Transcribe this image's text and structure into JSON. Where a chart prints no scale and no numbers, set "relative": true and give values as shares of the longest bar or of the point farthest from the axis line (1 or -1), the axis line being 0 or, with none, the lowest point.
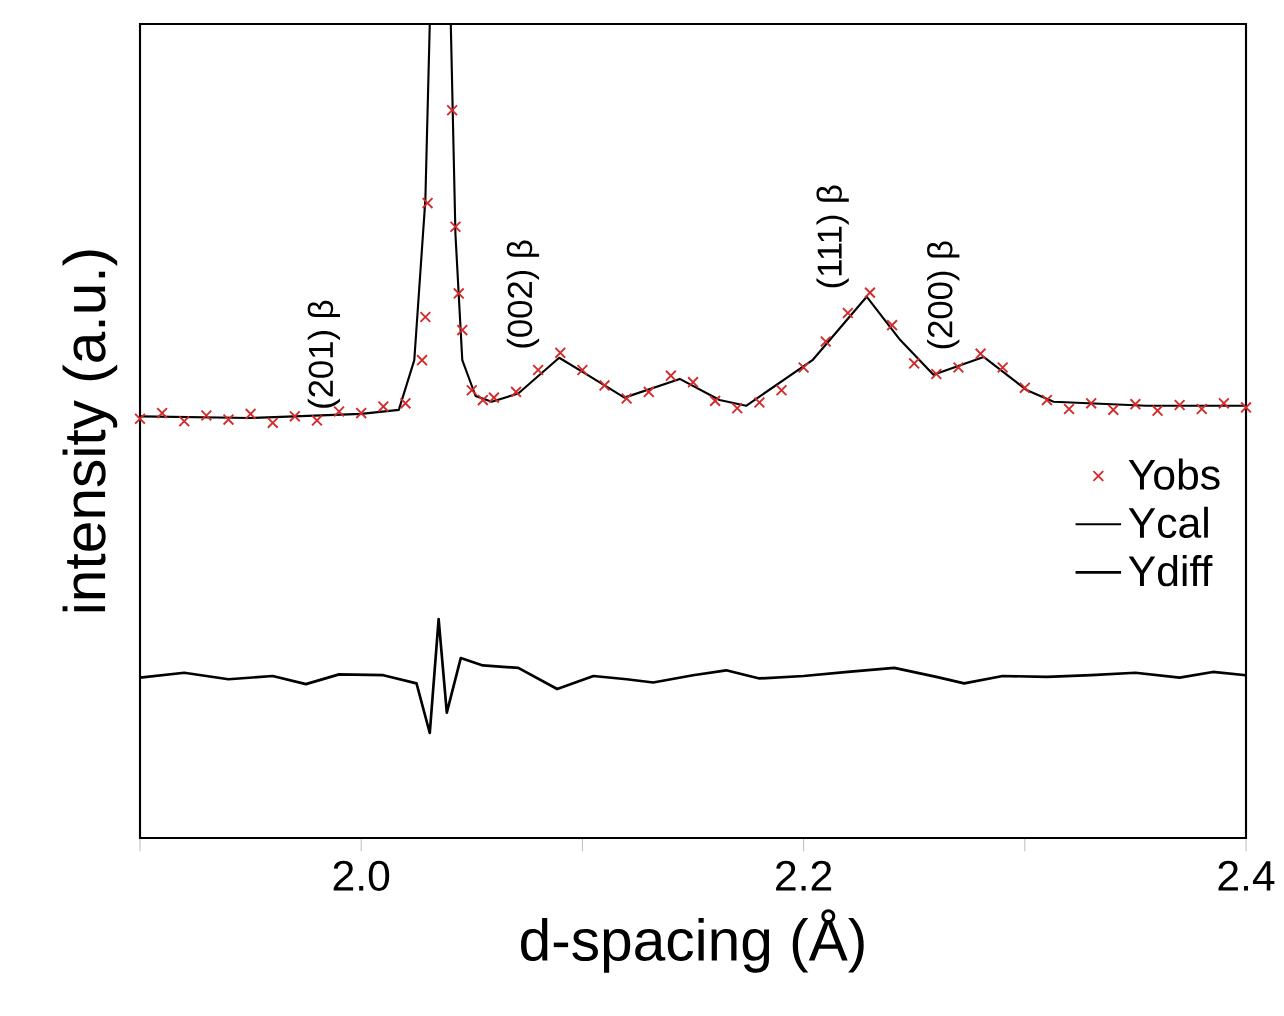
{
  "chart_data": {
    "type": "line",
    "xlabel": "d-spacing (Å)",
    "ylabel": "intensity (a.u.)",
    "relative": true,
    "legend": "right",
    "xlim": [
      1.9,
      2.4
    ],
    "xticks": [
      {
        "value": 1.9,
        "label": null
      },
      {
        "value": 2.0,
        "label": "2.0"
      },
      {
        "value": 2.1,
        "label": null
      },
      {
        "value": 2.2,
        "label": "2.2"
      },
      {
        "value": 2.3,
        "label": null
      },
      {
        "value": 2.4,
        "label": "2.4"
      }
    ],
    "series": [
      {
        "name": "Yobs",
        "type": "scatter",
        "marker": "cross",
        "color": "#d42a2a",
        "x": [
          1.9,
          1.91,
          1.92,
          1.93,
          1.94,
          1.95,
          1.96,
          1.97,
          1.98,
          1.99,
          2.0,
          2.01,
          2.02,
          2.0275,
          2.029,
          2.03,
          2.0411,
          2.0426,
          2.0441,
          2.0457,
          2.05,
          2.055,
          2.06,
          2.07,
          2.08,
          2.09,
          2.1,
          2.11,
          2.12,
          2.13,
          2.14,
          2.15,
          2.16,
          2.17,
          2.18,
          2.19,
          2.2,
          2.21,
          2.22,
          2.23,
          2.24,
          2.25,
          2.26,
          2.27,
          2.28,
          2.29,
          2.3,
          2.31,
          2.32,
          2.33,
          2.34,
          2.35,
          2.36,
          2.37,
          2.38,
          2.39,
          2.4
        ],
        "values": [
          0.515,
          0.522,
          0.512,
          0.519,
          0.514,
          0.521,
          0.51,
          0.518,
          0.513,
          0.524,
          0.522,
          0.53,
          0.534,
          0.587,
          0.64,
          0.78,
          0.894,
          0.751,
          0.669,
          0.624,
          0.55,
          0.538,
          0.541,
          0.548,
          0.575,
          0.596,
          0.575,
          0.556,
          0.54,
          0.548,
          0.568,
          0.56,
          0.537,
          0.528,
          0.535,
          0.55,
          0.578,
          0.61,
          0.645,
          0.67,
          0.63,
          0.583,
          0.57,
          0.578,
          0.595,
          0.578,
          0.553,
          0.538,
          0.527,
          0.534,
          0.526,
          0.533,
          0.525,
          0.532,
          0.527,
          0.534,
          0.529
        ]
      },
      {
        "name": "Ycal",
        "color": "#000000",
        "x": [
          1.9,
          1.95,
          2.0,
          2.017,
          2.024,
          2.029,
          2.031,
          2.0405,
          2.0426,
          2.0457,
          2.0517,
          2.059,
          2.071,
          2.0895,
          2.101,
          2.119,
          2.144,
          2.162,
          2.174,
          2.204,
          2.2285,
          2.2436,
          2.2587,
          2.2814,
          2.301,
          2.313,
          2.355,
          2.4
        ],
        "values": [
          0.518,
          0.516,
          0.521,
          0.526,
          0.587,
          0.784,
          1.0,
          1.0,
          0.742,
          0.587,
          0.543,
          0.536,
          0.546,
          0.59,
          0.571,
          0.541,
          0.564,
          0.538,
          0.531,
          0.587,
          0.665,
          0.612,
          0.569,
          0.591,
          0.55,
          0.536,
          0.531,
          0.531
        ]
      },
      {
        "name": "Ydiff",
        "color": "#000000",
        "x": [
          1.9,
          1.92,
          1.94,
          1.96,
          1.975,
          1.99,
          2.01,
          2.025,
          2.031,
          2.035,
          2.0387,
          2.045,
          2.055,
          2.071,
          2.0886,
          2.105,
          2.12,
          2.132,
          2.15,
          2.165,
          2.18,
          2.2,
          2.22,
          2.241,
          2.26,
          2.2726,
          2.29,
          2.31,
          2.33,
          2.35,
          2.37,
          2.385,
          2.4
        ],
        "values": [
          0.197,
          0.203,
          0.195,
          0.199,
          0.189,
          0.201,
          0.2,
          0.19,
          0.129,
          0.269,
          0.154,
          0.221,
          0.212,
          0.209,
          0.183,
          0.199,
          0.195,
          0.191,
          0.2,
          0.206,
          0.196,
          0.199,
          0.204,
          0.209,
          0.198,
          0.19,
          0.199,
          0.198,
          0.2,
          0.203,
          0.197,
          0.204,
          0.2
        ]
      }
    ],
    "annotations": [
      {
        "text": "(201) β",
        "x": 2.0,
        "y": 0.522
      },
      {
        "text": "(002) β",
        "x": 2.09,
        "y": 0.596
      },
      {
        "text": "(111) β",
        "x": 2.23,
        "y": 0.67
      },
      {
        "text": "(200) β",
        "x": 2.28,
        "y": 0.595
      }
    ]
  }
}
